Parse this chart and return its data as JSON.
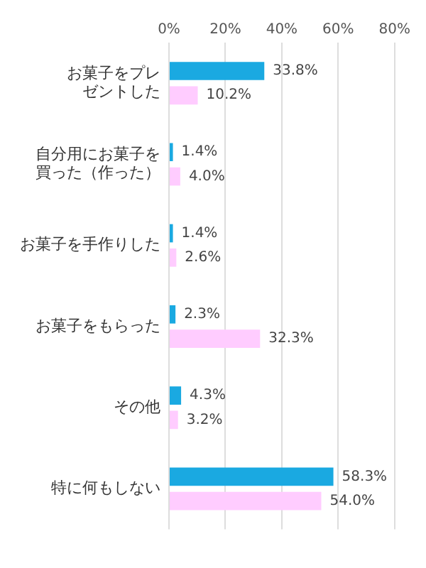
{
  "chart_data": {
    "type": "bar",
    "orientation": "horizontal",
    "categories": [
      "お菓子をプレゼントした",
      "自分用にお菓子を買った（作った）",
      "お菓子を手作りした",
      "お菓子をもらった",
      "その他",
      "特に何もしない"
    ],
    "series": [
      {
        "color": "#1aa9e1",
        "values": [
          33.8,
          1.4,
          1.4,
          2.3,
          4.3,
          58.3
        ],
        "value_labels": [
          "33.8%",
          "1.4%",
          "1.4%",
          "2.3%",
          "4.3%",
          "58.3%"
        ]
      },
      {
        "color": "#ffccff",
        "values": [
          10.2,
          4.0,
          2.6,
          32.3,
          3.2,
          54.0
        ],
        "value_labels": [
          "10.2%",
          "4.0%",
          "2.6%",
          "32.3%",
          "3.2%",
          "54.0%"
        ]
      }
    ],
    "xlim": [
      0,
      80
    ],
    "xticks": [
      {
        "value": 0,
        "label": "0%"
      },
      {
        "value": 20,
        "label": "20%"
      },
      {
        "value": 40,
        "label": "40%"
      },
      {
        "value": 60,
        "label": "60%"
      },
      {
        "value": 80,
        "label": "80%"
      }
    ],
    "grid": "x",
    "legend": false
  }
}
